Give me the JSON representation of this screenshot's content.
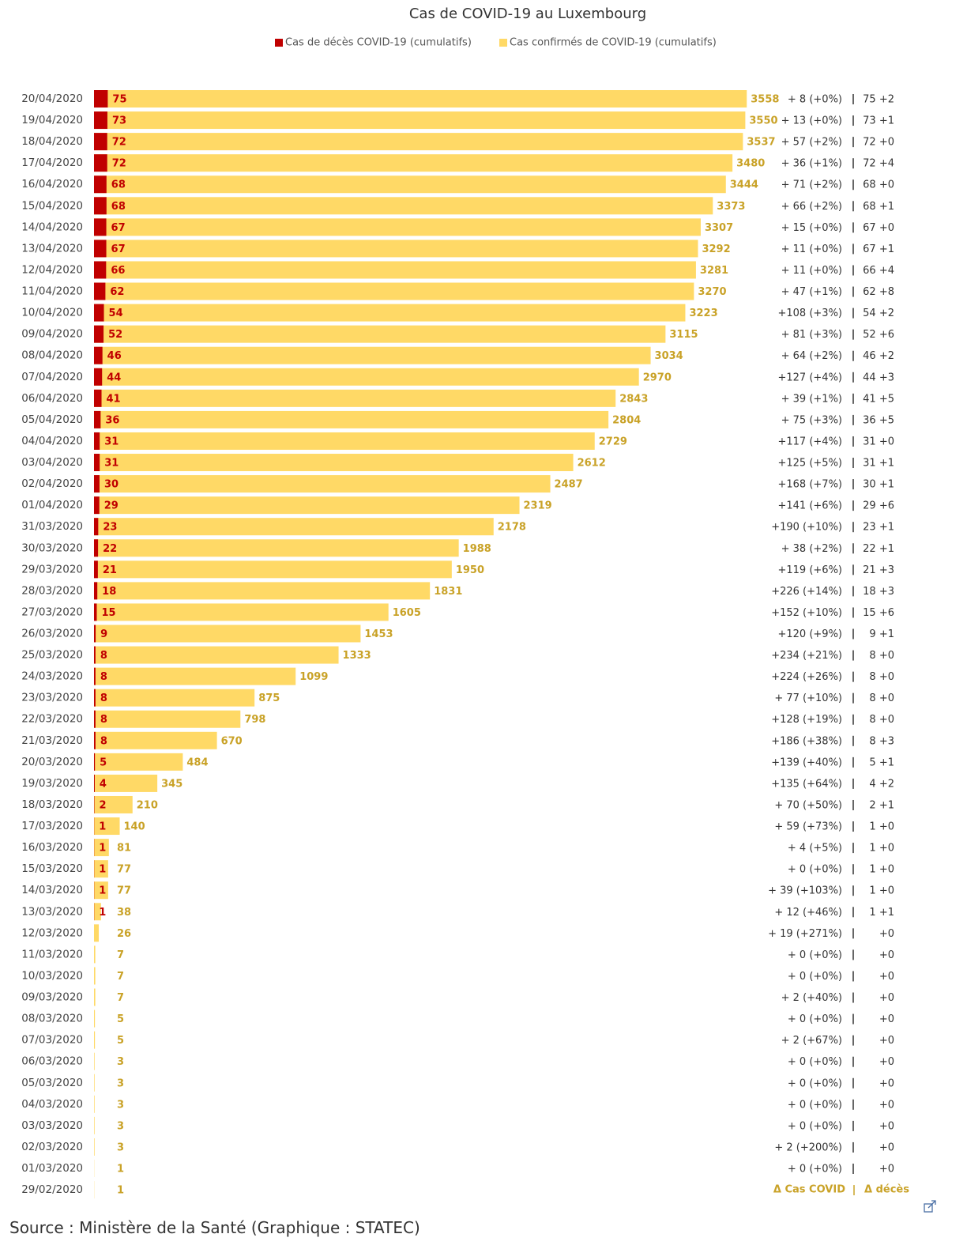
{
  "chart_data": {
    "type": "bar",
    "title": "Cas de COVID-19 au Luxembourg",
    "categories": [
      "20/04/2020",
      "19/04/2020",
      "18/04/2020",
      "17/04/2020",
      "16/04/2020",
      "15/04/2020",
      "14/04/2020",
      "13/04/2020",
      "12/04/2020",
      "11/04/2020",
      "10/04/2020",
      "09/04/2020",
      "08/04/2020",
      "07/04/2020",
      "06/04/2020",
      "05/04/2020",
      "04/04/2020",
      "03/04/2020",
      "02/04/2020",
      "01/04/2020",
      "31/03/2020",
      "30/03/2020",
      "29/03/2020",
      "28/03/2020",
      "27/03/2020",
      "26/03/2020",
      "25/03/2020",
      "24/03/2020",
      "23/03/2020",
      "22/03/2020",
      "21/03/2020",
      "20/03/2020",
      "19/03/2020",
      "18/03/2020",
      "17/03/2020",
      "16/03/2020",
      "15/03/2020",
      "14/03/2020",
      "13/03/2020",
      "12/03/2020",
      "11/03/2020",
      "10/03/2020",
      "09/03/2020",
      "08/03/2020",
      "07/03/2020",
      "06/03/2020",
      "05/03/2020",
      "04/03/2020",
      "03/03/2020",
      "02/03/2020",
      "01/03/2020",
      "29/02/2020"
    ],
    "series": [
      {
        "name": "Cas de décès  COVID-19 (cumulatifs)",
        "color": "#c00000",
        "values": [
          75,
          73,
          72,
          72,
          68,
          68,
          67,
          67,
          66,
          62,
          54,
          52,
          46,
          44,
          41,
          36,
          31,
          31,
          30,
          29,
          23,
          22,
          21,
          18,
          15,
          9,
          8,
          8,
          8,
          8,
          8,
          5,
          4,
          2,
          1,
          1,
          1,
          1,
          1,
          null,
          null,
          null,
          null,
          null,
          null,
          null,
          null,
          null,
          null,
          null,
          null,
          null
        ]
      },
      {
        "name": "Cas confirmés de COVID-19 (cumulatifs)",
        "color": "#ffd966",
        "values": [
          3558,
          3550,
          3537,
          3480,
          3444,
          3373,
          3307,
          3292,
          3281,
          3270,
          3223,
          3115,
          3034,
          2970,
          2843,
          2804,
          2729,
          2612,
          2487,
          2319,
          2178,
          1988,
          1950,
          1831,
          1605,
          1453,
          1333,
          1099,
          875,
          798,
          670,
          484,
          345,
          210,
          140,
          81,
          77,
          77,
          38,
          26,
          7,
          7,
          7,
          5,
          5,
          3,
          3,
          3,
          3,
          3,
          1,
          1
        ]
      }
    ],
    "case_changes": [
      "+ 8 (+0%)",
      "+ 13 (+0%)",
      "+ 57 (+2%)",
      "+ 36 (+1%)",
      "+ 71 (+2%)",
      "+ 66 (+2%)",
      "+ 15 (+0%)",
      "+ 11 (+0%)",
      "+ 11 (+0%)",
      "+ 47 (+1%)",
      "+108 (+3%)",
      "+ 81 (+3%)",
      "+ 64 (+2%)",
      "+127 (+4%)",
      "+ 39 (+1%)",
      "+ 75 (+3%)",
      "+117 (+4%)",
      "+125 (+5%)",
      "+168 (+7%)",
      "+141 (+6%)",
      "+190 (+10%)",
      "+ 38 (+2%)",
      "+119 (+6%)",
      "+226 (+14%)",
      "+152 (+10%)",
      "+120 (+9%)",
      "+234 (+21%)",
      "+224 (+26%)",
      "+ 77 (+10%)",
      "+128 (+19%)",
      "+186 (+38%)",
      "+139 (+40%)",
      "+135 (+64%)",
      "+ 70 (+50%)",
      "+ 59 (+73%)",
      "+ 4 (+5%)",
      "+ 0 (+0%)",
      "+ 39 (+103%)",
      "+ 12 (+46%)",
      "+ 19 (+271%)",
      "+ 0 (+0%)",
      "+ 0 (+0%)",
      "+ 2 (+40%)",
      "+ 0 (+0%)",
      "+ 2 (+67%)",
      "+ 0 (+0%)",
      "+ 0 (+0%)",
      "+ 0 (+0%)",
      "+ 0 (+0%)",
      "+ 2 (+200%)",
      "+ 0 (+0%)",
      null
    ],
    "death_changes": [
      "75 +2",
      "73 +1",
      "72 +0",
      "72 +4",
      "68 +0",
      "68 +1",
      "67 +0",
      "67 +1",
      "66 +4",
      "62 +8",
      "54 +2",
      "52 +6",
      "46 +2",
      "44 +3",
      "41 +5",
      "36 +5",
      "31 +0",
      "31 +1",
      "30 +1",
      "29 +6",
      "23 +1",
      "22 +1",
      "21 +3",
      "18 +3",
      "15 +6",
      "9 +1",
      "8 +0",
      "8 +0",
      "8 +0",
      "8 +0",
      "8 +3",
      "5 +1",
      "4 +2",
      "2 +1",
      "1 +0",
      "1 +0",
      "1 +0",
      "1 +0",
      "1 +1",
      "+0",
      "+0",
      "+0",
      "+0",
      "+0",
      "+0",
      "+0",
      "+0",
      "+0",
      "+0",
      "+0",
      "+0",
      null
    ],
    "case_changes_header": "Δ Cas COVID",
    "death_changes_header": "Δ décès",
    "source": "Source : Ministère de la Santé (Graphique : STATEC)",
    "xlim": [
      0,
      3600
    ]
  }
}
